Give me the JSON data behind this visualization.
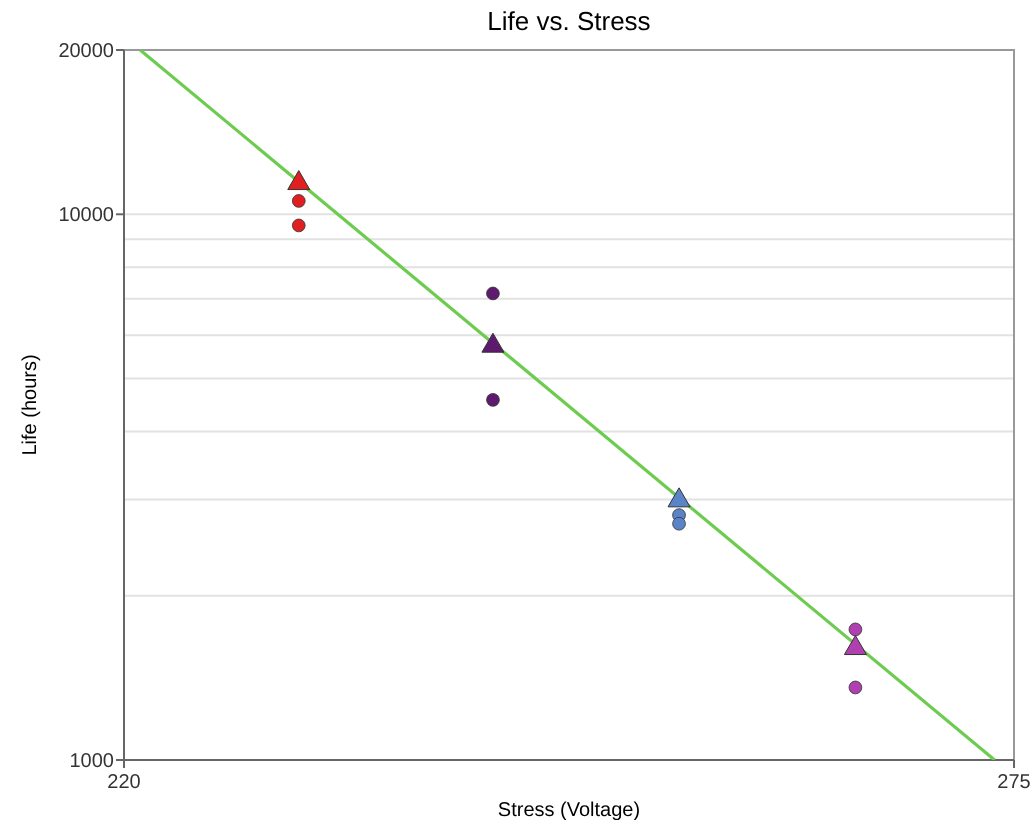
{
  "chart_data": {
    "type": "scatter",
    "title": "Life vs. Stress",
    "xlabel": "Stress (Voltage)",
    "ylabel": "Life (hours)",
    "xlim": [
      220,
      275
    ],
    "xticks": [
      220,
      275
    ],
    "ylim": [
      1000,
      20000
    ],
    "log": "y",
    "yticks": [
      1000,
      {
        "value": 2000,
        "label": null
      },
      {
        "value": 3000,
        "label": null
      },
      {
        "value": 4000,
        "label": null
      },
      {
        "value": 5000,
        "label": null
      },
      {
        "value": 6000,
        "label": null
      },
      {
        "value": 7000,
        "label": null
      },
      {
        "value": 8000,
        "label": null
      },
      {
        "value": 9000,
        "label": null
      },
      10000,
      20000
    ],
    "grid": "y",
    "series": [
      {
        "type": "line",
        "color": "#6dcc50",
        "marker": "none",
        "line_style": "solid",
        "x": [
          221,
          273.8
        ],
        "values": [
          20000,
          1000
        ]
      },
      {
        "color": "#e02020",
        "marker": "circle",
        "x": [
          230.8,
          230.8
        ],
        "values": [
          10580,
          9540
        ]
      },
      {
        "color": "#e02020",
        "marker": "triangle",
        "x": [
          230.8
        ],
        "values": [
          11480
        ]
      },
      {
        "color": "#5e1a6e",
        "marker": "circle",
        "x": [
          242.8,
          242.8
        ],
        "values": [
          7160,
          4570
        ]
      },
      {
        "color": "#5e1a6e",
        "marker": "triangle",
        "x": [
          242.8
        ],
        "values": [
          5780
        ]
      },
      {
        "color": "#5b84c8",
        "marker": "circle",
        "x": [
          254.3,
          254.3
        ],
        "values": [
          2810,
          2710
        ]
      },
      {
        "color": "#5b84c8",
        "marker": "triangle",
        "x": [
          254.3
        ],
        "values": [
          3010
        ]
      },
      {
        "color": "#b040b0",
        "marker": "circle",
        "x": [
          265.2,
          265.2
        ],
        "values": [
          1735,
          1358
        ]
      },
      {
        "color": "#b040b0",
        "marker": "triangle",
        "x": [
          265.2
        ],
        "values": [
          1614
        ]
      }
    ]
  }
}
